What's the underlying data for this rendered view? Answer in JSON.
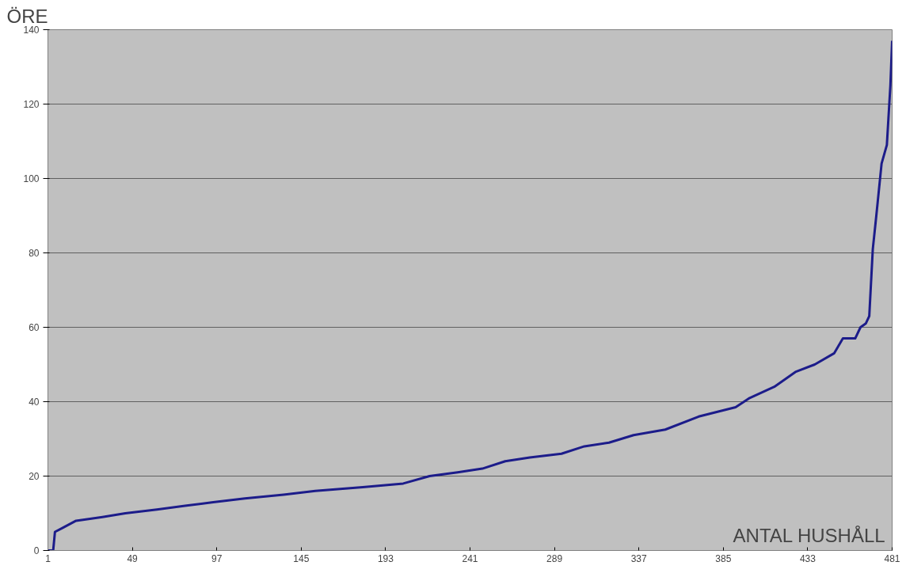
{
  "chart_data": {
    "type": "line",
    "ylabel": "ÖRE",
    "xlabel": "ANTAL HUSHÅLL",
    "x": [
      1,
      4,
      5,
      9,
      17,
      32,
      45,
      63,
      79,
      95,
      113,
      135,
      153,
      180,
      203,
      218,
      234,
      248,
      261,
      275,
      293,
      306,
      320,
      334,
      352,
      371,
      392,
      400,
      414,
      426,
      437,
      448,
      453,
      460,
      463,
      466,
      468,
      470,
      472,
      475,
      478,
      480,
      481
    ],
    "series": [
      {
        "color": "#1c1c8a",
        "values": [
          0,
          0,
          5,
          6,
          8,
          9,
          10,
          11,
          12,
          13,
          14,
          15,
          16,
          17,
          18,
          20,
          21,
          22,
          24,
          25,
          26,
          28,
          29,
          31,
          32.5,
          36,
          38.5,
          41,
          44,
          48,
          50,
          53,
          57,
          57,
          60,
          61,
          63,
          81,
          90,
          104,
          109,
          125,
          137
        ]
      }
    ],
    "xlim": [
      1,
      481
    ],
    "ylim": [
      0,
      140
    ],
    "xticks": [
      1,
      49,
      97,
      145,
      193,
      241,
      289,
      337,
      385,
      433,
      481
    ],
    "yticks": [
      0,
      20,
      40,
      60,
      80,
      100,
      120,
      140
    ],
    "grid": "y",
    "marker": "none",
    "line_style": "solid"
  }
}
